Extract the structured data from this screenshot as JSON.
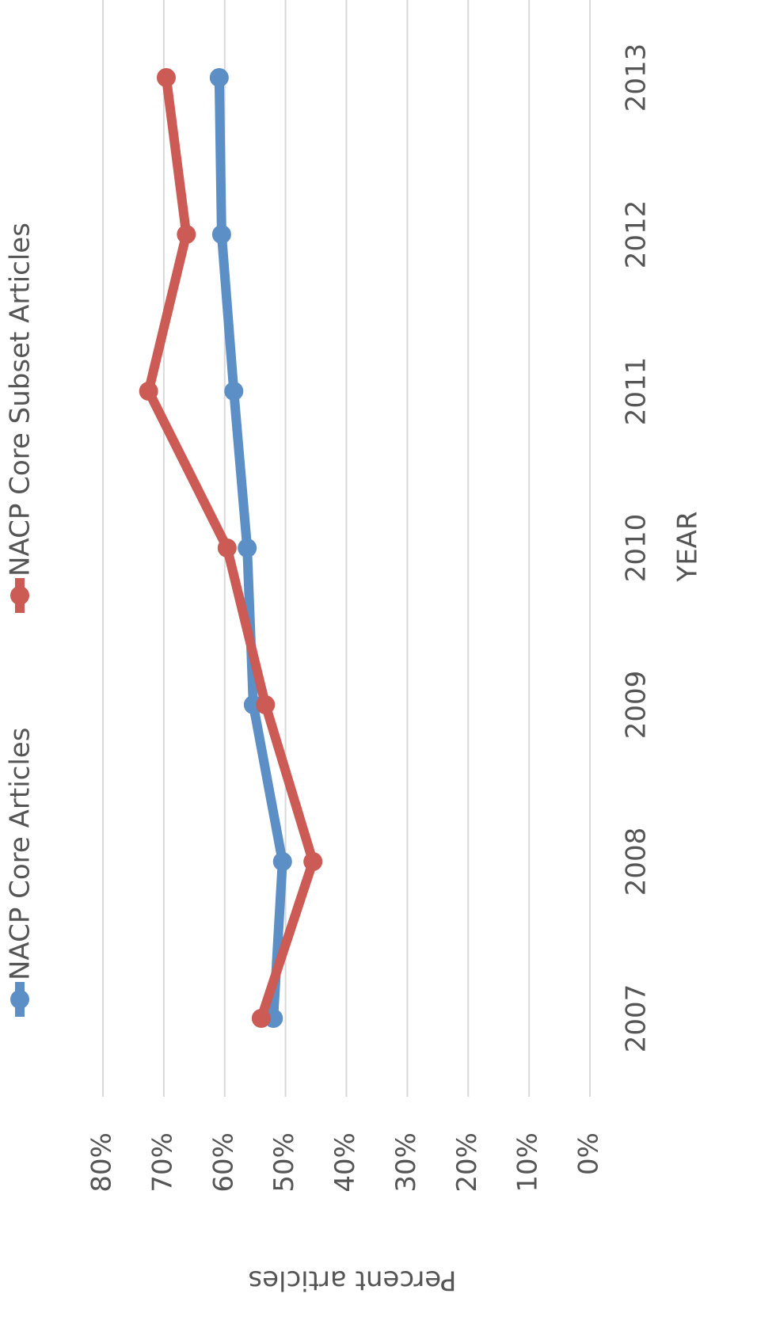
{
  "chart_data": {
    "type": "line",
    "x_label": "YEAR",
    "y_label": "Percent articles",
    "categories": [
      "2007",
      "2008",
      "2009",
      "2010",
      "2011",
      "2012",
      "2013"
    ],
    "series": [
      {
        "name": "NACP Core Articles",
        "color": "#5b8fc5",
        "values": [
          52.0,
          50.5,
          55.3,
          56.3,
          58.5,
          60.5,
          60.9
        ]
      },
      {
        "name": "NACP Core Subset Articles",
        "color": "#cc5a55",
        "values": [
          54.0,
          45.5,
          53.3,
          59.6,
          72.5,
          66.3,
          69.6
        ]
      }
    ],
    "ylim": [
      0,
      80
    ],
    "yticks": [
      {
        "value": 0,
        "label": "0%"
      },
      {
        "value": 10,
        "label": "10%"
      },
      {
        "value": 20,
        "label": "20%"
      },
      {
        "value": 30,
        "label": "30%"
      },
      {
        "value": 40,
        "label": "40%"
      },
      {
        "value": 50,
        "label": "50%"
      },
      {
        "value": 60,
        "label": "60%"
      },
      {
        "value": 70,
        "label": "70%"
      },
      {
        "value": 80,
        "label": "80%"
      }
    ],
    "grid": true,
    "legend": "top"
  }
}
